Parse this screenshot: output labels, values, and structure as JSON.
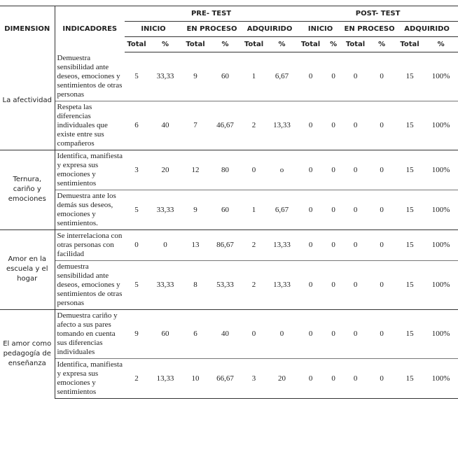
{
  "table": {
    "header": {
      "dimension": "DIMENSION",
      "indicators": "INDICADORES",
      "groups": [
        "PRE- TEST",
        "POST- TEST"
      ],
      "levels": [
        "INICIO",
        "EN PROCESO",
        "ADQUIRIDO",
        "INICIO",
        "EN PROCESO",
        "ADQUIRIDO"
      ],
      "sub": [
        "Total",
        "%",
        "Total",
        "%",
        "Total",
        "%",
        "Total",
        "%",
        "Total",
        "%",
        "Total",
        "%"
      ]
    },
    "dimensions": [
      {
        "name": "La afectividad",
        "rows": [
          {
            "indicator": "Demuestra sensibilidad ante deseos, emociones y sentimientos de otras personas",
            "values": [
              "5",
              "33,33",
              "9",
              "60",
              "1",
              "6,67",
              "0",
              "0",
              "0",
              "0",
              "15",
              "100%"
            ]
          },
          {
            "indicator": "Respeta las diferencias individuales que existe entre sus compañeros",
            "values": [
              "6",
              "40",
              "7",
              "46,67",
              "2",
              "13,33",
              "0",
              "0",
              "0",
              "0",
              "15",
              "100%"
            ]
          }
        ]
      },
      {
        "name": "Ternura, cariño y emociones",
        "rows": [
          {
            "indicator": "Identifica, manifiesta y expresa sus emociones y sentimientos",
            "values": [
              "3",
              "20",
              "12",
              "80",
              "0",
              "o",
              "0",
              "0",
              "0",
              "0",
              "15",
              "100%"
            ]
          },
          {
            "indicator": "Demuestra ante los demás sus deseos, emociones y sentimientos.",
            "values": [
              "5",
              "33,33",
              "9",
              "60",
              "1",
              "6,67",
              "0",
              "0",
              "0",
              "0",
              "15",
              "100%"
            ]
          }
        ]
      },
      {
        "name": "Amor en la escuela y el hogar",
        "rows": [
          {
            "indicator": "Se interrelaciona con otras personas con facilidad",
            "values": [
              "0",
              "0",
              "13",
              "86,67",
              "2",
              "13,33",
              "0",
              "0",
              "0",
              "0",
              "15",
              "100%"
            ]
          },
          {
            "indicator": "demuestra sensibilidad ante deseos, emociones y sentimientos de otras personas",
            "values": [
              "5",
              "33,33",
              "8",
              "53,33",
              "2",
              "13,33",
              "0",
              "0",
              "0",
              "0",
              "15",
              "100%"
            ]
          }
        ]
      },
      {
        "name": "El amor como pedagogía de enseñanza",
        "rows": [
          {
            "indicator": "Demuestra cariño y afecto a sus pares tomando en cuenta sus diferencias individuales",
            "values": [
              "9",
              "60",
              "6",
              "40",
              "0",
              "0",
              "0",
              "0",
              "0",
              "0",
              "15",
              "100%"
            ]
          },
          {
            "indicator": "Identifica, manifiesta y expresa sus emociones y sentimientos",
            "values": [
              "2",
              "13,33",
              "10",
              "66,67",
              "3",
              "20",
              "0",
              "0",
              "0",
              "0",
              "15",
              "100%"
            ]
          }
        ]
      }
    ]
  }
}
